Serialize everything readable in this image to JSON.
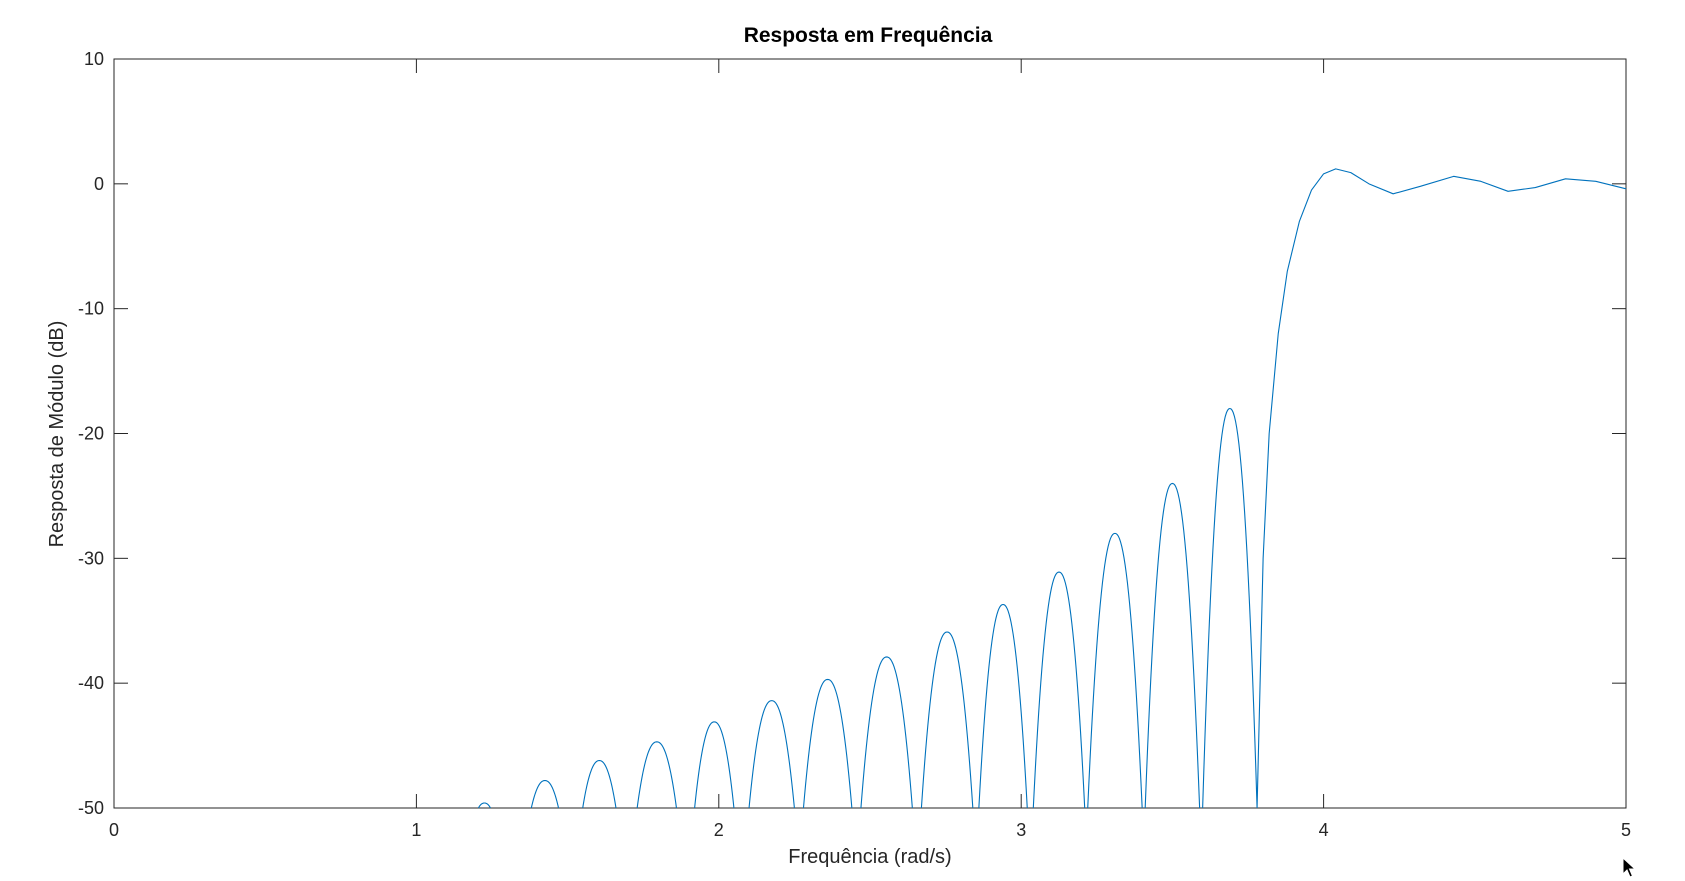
{
  "chart_data": {
    "type": "line",
    "title": "Resposta em Frequência",
    "xlabel": "Frequência (rad/s)",
    "ylabel": "Resposta de Módulo (dB)",
    "xlim": [
      0,
      5
    ],
    "ylim": [
      -50,
      10
    ],
    "xticks": [
      "0",
      "1",
      "2",
      "3",
      "4",
      "5"
    ],
    "yticks": [
      "10",
      "0",
      "-10",
      "-20",
      "-30",
      "-40",
      "-50"
    ],
    "grid": false,
    "line_color": "#0072bd",
    "series": [
      {
        "lobes": [
          {
            "start": 1.205,
            "end": 1.245,
            "peak": -49.6
          },
          {
            "start": 1.38,
            "end": 1.47,
            "peak": -47.8
          },
          {
            "start": 1.55,
            "end": 1.66,
            "peak": -46.2
          },
          {
            "start": 1.73,
            "end": 1.86,
            "peak": -44.7
          },
          {
            "start": 1.92,
            "end": 2.05,
            "peak": -43.1
          },
          {
            "start": 2.1,
            "end": 2.25,
            "peak": -41.4
          },
          {
            "start": 2.28,
            "end": 2.44,
            "peak": -39.7
          },
          {
            "start": 2.47,
            "end": 2.64,
            "peak": -37.9
          },
          {
            "start": 2.67,
            "end": 2.84,
            "peak": -35.9
          },
          {
            "start": 2.86,
            "end": 3.02,
            "peak": -33.7
          },
          {
            "start": 3.04,
            "end": 3.21,
            "peak": -31.1
          },
          {
            "start": 3.22,
            "end": 3.4,
            "peak": -28.0
          },
          {
            "start": 3.41,
            "end": 3.59,
            "peak": -24.0
          },
          {
            "start": 3.6,
            "end": 3.78,
            "peak": -18.0
          }
        ],
        "passband": {
          "x": [
            3.78,
            3.8,
            3.82,
            3.85,
            3.88,
            3.92,
            3.96,
            4.0,
            4.04,
            4.09,
            4.15,
            4.23,
            4.32,
            4.43,
            4.52,
            4.61,
            4.7,
            4.8,
            4.9,
            5.0
          ],
          "y": [
            -50,
            -30,
            -20,
            -12,
            -7,
            -3,
            -0.5,
            0.8,
            1.2,
            0.9,
            0.0,
            -0.8,
            -0.2,
            0.6,
            0.2,
            -0.6,
            -0.3,
            0.4,
            0.2,
            -0.4
          ]
        }
      }
    ]
  }
}
